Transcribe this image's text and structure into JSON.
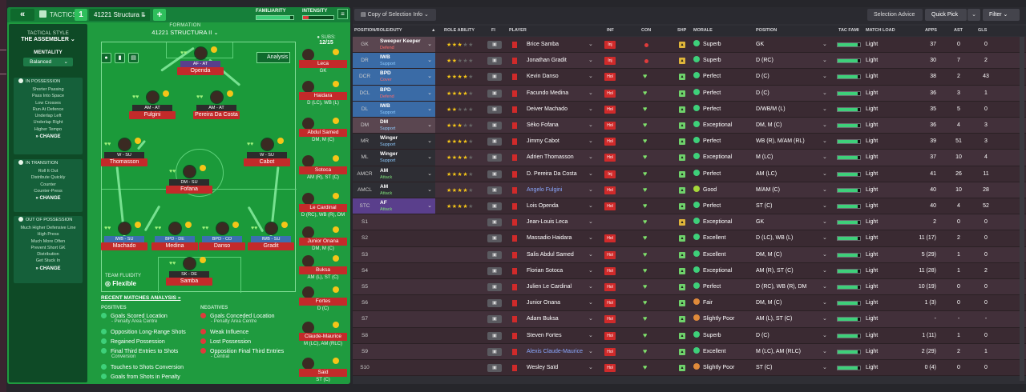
{
  "tactics_bar": {
    "back_label": "«",
    "tab_label": "TACTICS",
    "slot": "1",
    "tactic_name": "41221 Structura II",
    "add_label": "+",
    "familiarity_label": "FAMILIARITY",
    "intensity_label": "INTENSITY",
    "familiarity_value": 0.92,
    "intensity_value": 0.18
  },
  "sidebar": {
    "style_label": "TACTICAL STYLE",
    "style_value": "THE ASSEMBLER",
    "mentality_label": "MENTALITY",
    "mentality_value": "Balanced",
    "in_possession": {
      "title": "IN POSSESSION",
      "items": [
        "Shorter Passing",
        "Pass Into Space",
        "Low Crosses",
        "Run At Defence",
        "Underlap Left",
        "Underlap Right",
        "Higher Tempo"
      ],
      "change": "CHANGE"
    },
    "in_transition": {
      "title": "IN TRANSITION",
      "items": [
        "Roll It Out",
        "Distribute Quickly",
        "Counter",
        "Counter-Press"
      ],
      "change": "CHANGE"
    },
    "out_of_possession": {
      "title": "OUT OF POSSESSION",
      "items": [
        "Much Higher Defensive Line",
        "High Press",
        "Much More Often",
        "Prevent Short GK",
        "Distribution",
        "Get Stuck In"
      ],
      "change": "CHANGE"
    }
  },
  "formation": {
    "label": "FORMATION",
    "name": "41221 STRUCTURA II",
    "analysis_label": "Analysis",
    "fluidity_label": "TEAM FLUIDITY",
    "fluidity_value": "Flexible",
    "subs_label": "SUBS:",
    "subs_count": "12/15"
  },
  "pitch_players": [
    {
      "role": "AF - AT",
      "name": "Openda"
    },
    {
      "role": "AM - AT",
      "name": "Fulgini"
    },
    {
      "role": "AM - AT",
      "name": "Pereira Da Costa"
    },
    {
      "role": "W - SU",
      "name": "Thomasson"
    },
    {
      "role": "W - SU",
      "name": "Cabot"
    },
    {
      "role": "DM - SU",
      "name": "Fofana"
    },
    {
      "role": "IWB - SU",
      "name": "Machado"
    },
    {
      "role": "BPD - DE",
      "name": "Medina"
    },
    {
      "role": "BPD - CO",
      "name": "Danso"
    },
    {
      "role": "IWB - SU",
      "name": "Gradit"
    },
    {
      "role": "SK - DE",
      "name": "Samba"
    }
  ],
  "subs": [
    {
      "name": "Leca",
      "pos": "GK"
    },
    {
      "name": "Haidara",
      "pos": "D (LC), WB (L)"
    },
    {
      "name": "Abdul Samed",
      "pos": "DM, M (C)"
    },
    {
      "name": "Sotoca",
      "pos": "AM (R), ST (C)"
    },
    {
      "name": "Le Cardinal",
      "pos": "D (RC), WB (R), DM"
    },
    {
      "name": "Junior Onana",
      "pos": "DM, M (C)"
    },
    {
      "name": "Buksa",
      "pos": "AM (L), ST (C)"
    },
    {
      "name": "Fortes",
      "pos": "D (C)"
    },
    {
      "name": "Claude-Maurice",
      "pos": "M (LC), AM (RLC)"
    },
    {
      "name": "Said",
      "pos": "ST (C)"
    }
  ],
  "analysis": {
    "title": "RECENT MATCHES ANALYSIS »",
    "positives_label": "POSITIVES",
    "negatives_label": "NEGATIVES",
    "positives": [
      {
        "text": "Goals Scored Location",
        "sub": "- Penalty Area Centre"
      },
      {
        "text": "Opposition Long-Range Shots",
        "sub": ""
      },
      {
        "text": "Regained Possession",
        "sub": ""
      },
      {
        "text": "Final Third Entries to Shots",
        "sub": "Conversion"
      },
      {
        "text": "Touches to Shots Conversion",
        "sub": ""
      },
      {
        "text": "Goals from Shots in Penalty",
        "sub": ""
      }
    ],
    "negatives": [
      {
        "text": "Goals Conceded Location",
        "sub": "- Penalty Area Centre"
      },
      {
        "text": "Weak Influence",
        "sub": ""
      },
      {
        "text": "Lost Possession",
        "sub": ""
      },
      {
        "text": "Opposition Final Third Entries",
        "sub": "- Central"
      }
    ]
  },
  "table_bar": {
    "view_label": "Copy of Selection Info",
    "advice_label": "Selection Advice",
    "quickpick_label": "Quick Pick",
    "filter_label": "Filter"
  },
  "table_headers": {
    "pos": "POSITION/ROLE/DUTY",
    "ability": "ROLE ABILITY",
    "fi": "FI",
    "player": "PLAYER",
    "inf": "INF",
    "con": "CON",
    "shp": "SHP",
    "morale": "MORALE",
    "position": "POSITION",
    "fam": "TAC FAMI",
    "load": "MATCH LOAD",
    "apps": "APPS",
    "ast": "AST",
    "gls": "GLS"
  },
  "players": [
    {
      "pos": "GK",
      "role": "Sweeper Keeper",
      "duty": "Defend",
      "duty_color": "#ff6b6b",
      "role_bg": "#5a4650",
      "stars": 2.5,
      "name": "Brice Samba",
      "link": false,
      "inf": "Inj",
      "con": "dot",
      "shp": "#e0b53a",
      "morale": "Superb",
      "morale_color": "#3ed07a",
      "position": "GK",
      "fam": 0.9,
      "load": "Light",
      "apps": "37",
      "ast": "0",
      "gls": "0"
    },
    {
      "pos": "DR",
      "role": "IWB",
      "duty": "Support",
      "duty_color": "#8ecbff",
      "role_bg": "#3a6ba6",
      "stars": 2,
      "name": "Jonathan Gradit",
      "link": false,
      "inf": "Inj",
      "con": "dot",
      "shp": "#e0b53a",
      "morale": "Superb",
      "morale_color": "#3ed07a",
      "position": "D (RC)",
      "fam": 0.9,
      "load": "Light",
      "apps": "30",
      "ast": "7",
      "gls": "2"
    },
    {
      "pos": "DCR",
      "role": "BPD",
      "duty": "Cover",
      "duty_color": "#ff6b6b",
      "role_bg": "#3a6ba6",
      "stars": 4,
      "name": "Kevin Danso",
      "link": false,
      "inf": "Hol",
      "con": "heart",
      "shp": "#6fd26b",
      "morale": "Perfect",
      "morale_color": "#3ed07a",
      "position": "D (C)",
      "fam": 0.9,
      "load": "Light",
      "apps": "38",
      "ast": "2",
      "gls": "43"
    },
    {
      "pos": "DCL",
      "role": "BPD",
      "duty": "Defend",
      "duty_color": "#ff6b6b",
      "role_bg": "#3a6ba6",
      "stars": 4,
      "name": "Facundo Medina",
      "link": false,
      "inf": "Hol",
      "con": "heart",
      "shp": "#6fd26b",
      "morale": "Perfect",
      "morale_color": "#3ed07a",
      "position": "D (C)",
      "fam": 0.9,
      "load": "Light",
      "apps": "36",
      "ast": "3",
      "gls": "1"
    },
    {
      "pos": "DL",
      "role": "IWB",
      "duty": "Support",
      "duty_color": "#8ecbff",
      "role_bg": "#3a6ba6",
      "stars": 2,
      "name": "Deiver Machado",
      "link": false,
      "inf": "Hol",
      "con": "heart",
      "shp": "#6fd26b",
      "morale": "Perfect",
      "morale_color": "#3ed07a",
      "position": "D/WB/M (L)",
      "fam": 0.9,
      "load": "Light",
      "apps": "35",
      "ast": "5",
      "gls": "0"
    },
    {
      "pos": "DM",
      "role": "DM",
      "duty": "Support",
      "duty_color": "#8ecbff",
      "role_bg": "#5a4650",
      "stars": 3,
      "name": "Séko Fofana",
      "link": false,
      "inf": "Hol",
      "con": "heart",
      "shp": "#6fd26b",
      "morale": "Exceptional",
      "morale_color": "#3ed07a",
      "position": "DM, M (C)",
      "fam": 0.9,
      "load": "Light",
      "apps": "36",
      "ast": "4",
      "gls": "3"
    },
    {
      "pos": "MR",
      "role": "Winger",
      "duty": "Support",
      "duty_color": "#8ecbff",
      "role_bg": "#2e2e34",
      "stars": 4,
      "name": "Jimmy Cabot",
      "link": false,
      "inf": "Hol",
      "con": "heart",
      "shp": "#6fd26b",
      "morale": "Perfect",
      "morale_color": "#3ed07a",
      "position": "WB (R), M/AM (RL)",
      "fam": 0.9,
      "load": "Light",
      "apps": "39",
      "ast": "51",
      "gls": "3"
    },
    {
      "pos": "ML",
      "role": "Winger",
      "duty": "Support",
      "duty_color": "#8ecbff",
      "role_bg": "#2e2e34",
      "stars": 4,
      "name": "Adrien Thomasson",
      "link": false,
      "inf": "Hol",
      "con": "heart",
      "shp": "#6fd26b",
      "morale": "Exceptional",
      "morale_color": "#3ed07a",
      "position": "M (LC)",
      "fam": 0.9,
      "load": "Light",
      "apps": "37",
      "ast": "10",
      "gls": "4"
    },
    {
      "pos": "AMCR",
      "role": "AM",
      "duty": "Attack",
      "duty_color": "#7ee07a",
      "role_bg": "#2e2e34",
      "stars": 3.5,
      "name": "D. Pereira Da Costa",
      "link": false,
      "inf": "Inj",
      "con": "heart",
      "shp": "#6fd26b",
      "morale": "Perfect",
      "morale_color": "#3ed07a",
      "position": "AM (LC)",
      "fam": 0.9,
      "load": "Light",
      "apps": "41",
      "ast": "26",
      "gls": "11"
    },
    {
      "pos": "AMCL",
      "role": "AM",
      "duty": "Attack",
      "duty_color": "#7ee07a",
      "role_bg": "#2e2e34",
      "stars": 3.5,
      "name": "Angelo Fulgini",
      "link": true,
      "inf": "Hol",
      "con": "heart",
      "shp": "#6fd26b",
      "morale": "Good",
      "morale_color": "#a6d83a",
      "position": "M/AM (C)",
      "fam": 0.9,
      "load": "Light",
      "apps": "40",
      "ast": "10",
      "gls": "28"
    },
    {
      "pos": "STC",
      "role": "AF",
      "duty": "Attack",
      "duty_color": "#7ee07a",
      "role_bg": "#5a3f8c",
      "stars": 4,
      "name": "Lois Openda",
      "link": false,
      "inf": "Hol",
      "con": "heart",
      "shp": "#6fd26b",
      "morale": "Perfect",
      "morale_color": "#3ed07a",
      "position": "ST (C)",
      "fam": 0.9,
      "load": "Light",
      "apps": "40",
      "ast": "4",
      "gls": "52"
    },
    {
      "pos": "S1",
      "role": "",
      "duty": "",
      "duty_color": "#fff",
      "role_bg": "",
      "stars": 0,
      "name": "Jean-Louis Leca",
      "link": false,
      "inf": "",
      "con": "heart",
      "shp": "#e0b53a",
      "morale": "Exceptional",
      "morale_color": "#3ed07a",
      "position": "GK",
      "fam": 0.9,
      "load": "Light",
      "apps": "2",
      "ast": "0",
      "gls": "0"
    },
    {
      "pos": "S2",
      "role": "",
      "duty": "",
      "duty_color": "#fff",
      "role_bg": "",
      "stars": 0,
      "name": "Massadio Haidara",
      "link": false,
      "inf": "Hol",
      "con": "heart",
      "shp": "#6fd26b",
      "morale": "Excellent",
      "morale_color": "#3ed07a",
      "position": "D (LC), WB (L)",
      "fam": 0.9,
      "load": "Light",
      "apps": "11 (17)",
      "ast": "2",
      "gls": "0"
    },
    {
      "pos": "S3",
      "role": "",
      "duty": "",
      "duty_color": "#fff",
      "role_bg": "",
      "stars": 0,
      "name": "Salis Abdul Samed",
      "link": false,
      "inf": "Hol",
      "con": "heart",
      "shp": "#6fd26b",
      "morale": "Excellent",
      "morale_color": "#3ed07a",
      "position": "DM, M (C)",
      "fam": 0.9,
      "load": "Light",
      "apps": "5 (29)",
      "ast": "1",
      "gls": "0"
    },
    {
      "pos": "S4",
      "role": "",
      "duty": "",
      "duty_color": "#fff",
      "role_bg": "",
      "stars": 0,
      "name": "Florian Sotoca",
      "link": false,
      "inf": "Hol",
      "con": "heart",
      "shp": "#6fd26b",
      "morale": "Exceptional",
      "morale_color": "#3ed07a",
      "position": "AM (R), ST (C)",
      "fam": 0.9,
      "load": "Light",
      "apps": "11 (28)",
      "ast": "1",
      "gls": "2"
    },
    {
      "pos": "S5",
      "role": "",
      "duty": "",
      "duty_color": "#fff",
      "role_bg": "",
      "stars": 0,
      "name": "Julien Le Cardinal",
      "link": false,
      "inf": "Hol",
      "con": "heart",
      "shp": "#6fd26b",
      "morale": "Perfect",
      "morale_color": "#3ed07a",
      "position": "D (RC), WB (R), DM",
      "fam": 0.9,
      "load": "Light",
      "apps": "10 (19)",
      "ast": "0",
      "gls": "0"
    },
    {
      "pos": "S6",
      "role": "",
      "duty": "",
      "duty_color": "#fff",
      "role_bg": "",
      "stars": 0,
      "name": "Junior Onana",
      "link": false,
      "inf": "Hol",
      "con": "heart",
      "shp": "#6fd26b",
      "morale": "Fair",
      "morale_color": "#e08a3a",
      "position": "DM, M (C)",
      "fam": 0.9,
      "load": "Light",
      "apps": "1 (3)",
      "ast": "0",
      "gls": "0"
    },
    {
      "pos": "S7",
      "role": "",
      "duty": "",
      "duty_color": "#fff",
      "role_bg": "",
      "stars": 0,
      "name": "Adam Buksa",
      "link": false,
      "inf": "Hol",
      "con": "heart",
      "shp": "#6fd26b",
      "morale": "Slightly Poor",
      "morale_color": "#e08a3a",
      "position": "AM (L), ST (C)",
      "fam": 0.9,
      "load": "Light",
      "apps": "-",
      "ast": "-",
      "gls": "-"
    },
    {
      "pos": "S8",
      "role": "",
      "duty": "",
      "duty_color": "#fff",
      "role_bg": "",
      "stars": 0,
      "name": "Steven Fortes",
      "link": false,
      "inf": "Hol",
      "con": "heart",
      "shp": "#6fd26b",
      "morale": "Superb",
      "morale_color": "#3ed07a",
      "position": "D (C)",
      "fam": 0.9,
      "load": "Light",
      "apps": "1 (11)",
      "ast": "1",
      "gls": "0"
    },
    {
      "pos": "S9",
      "role": "",
      "duty": "",
      "duty_color": "#fff",
      "role_bg": "",
      "stars": 0,
      "name": "Alexis Claude-Maurice",
      "link": true,
      "inf": "Hol",
      "con": "heart",
      "shp": "#6fd26b",
      "morale": "Excellent",
      "morale_color": "#3ed07a",
      "position": "M (LC), AM (RLC)",
      "fam": 0.9,
      "load": "Light",
      "apps": "2 (29)",
      "ast": "2",
      "gls": "1"
    },
    {
      "pos": "S10",
      "role": "",
      "duty": "",
      "duty_color": "#fff",
      "role_bg": "",
      "stars": 0,
      "name": "Wesley Saïd",
      "link": false,
      "inf": "Hol",
      "con": "heart",
      "shp": "#6fd26b",
      "morale": "Slightly Poor",
      "morale_color": "#e08a3a",
      "position": "ST (C)",
      "fam": 0.9,
      "load": "Light",
      "apps": "0 (4)",
      "ast": "0",
      "gls": "0"
    }
  ]
}
